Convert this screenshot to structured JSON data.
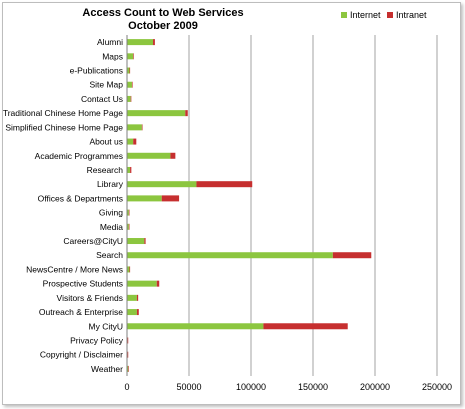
{
  "chart_data": {
    "type": "bar",
    "orientation": "horizontal",
    "stacked": true,
    "title": "Access Count to Web Services",
    "subtitle": "October 2009",
    "legend_position": "top-right",
    "grid": true,
    "xlim": [
      0,
      250000
    ],
    "xticks": [
      "0",
      "50000",
      "100000",
      "150000",
      "200000",
      "250000"
    ],
    "categories": [
      "Alumni",
      "Maps",
      "e-Publications",
      "Site Map",
      "Contact Us",
      "Traditional Chinese Home Page",
      "Simplified Chinese Home Page",
      "About us",
      "Academic Programmes",
      "Research",
      "Library",
      "Offices & Departments",
      "Giving",
      "Media",
      "Careers@CityU",
      "Search",
      "NewsCentre / More News",
      "Prospective Students",
      "Visitors & Friends",
      "Outreach & Enterprise",
      "My CityU",
      "Privacy Policy",
      "Copyright / Disclaimer",
      "Weather"
    ],
    "series": [
      {
        "name": "Internet",
        "color": "#8cc63f",
        "values": [
          21000,
          5000,
          2000,
          4000,
          3000,
          47000,
          12000,
          5000,
          35000,
          2500,
          56000,
          28000,
          1500,
          1500,
          14000,
          166000,
          2000,
          24000,
          8000,
          8000,
          110000,
          500,
          500,
          1000
        ]
      },
      {
        "name": "Intranet",
        "color": "#c62f2f",
        "values": [
          1500,
          500,
          500,
          500,
          300,
          2000,
          500,
          2500,
          4000,
          1000,
          45000,
          14000,
          300,
          300,
          1000,
          31000,
          500,
          2000,
          1000,
          1500,
          68000,
          100,
          100,
          100
        ]
      }
    ]
  }
}
